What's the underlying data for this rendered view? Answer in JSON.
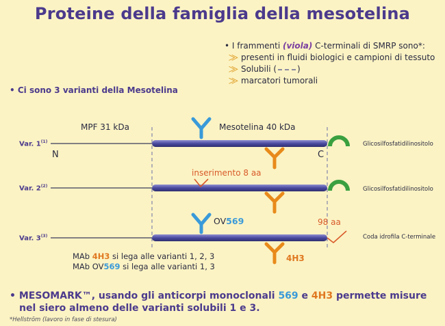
{
  "title": "Proteine della famiglia della mesotelina",
  "info": {
    "heading_pre": "I frammenti ",
    "heading_viola": "(viola)",
    "heading_post": " C-terminali di SMRP sono*:",
    "item1": "presenti in fluidi biologici e campioni di tessuto",
    "item2_pre": "Solubili (",
    "item2_post": ")",
    "item3": "marcatori tumorali"
  },
  "variants_heading": "• Ci sono 3 varianti della Mesotelina",
  "labels": {
    "mpf": "MPF 31 kDa",
    "mesotelina": "Mesotelina 40 kDa",
    "n": "N",
    "c": "C",
    "gpi1": "Glicosilfosfatidilinositolo",
    "gpi2": "Glicosilfosfatidilinositolo",
    "insert": "inserimento 8 aa",
    "ov_pre": "OV",
    "ov_num": "569",
    "aa98": "98 aa",
    "tail": "Coda idrofila C-terminale",
    "h43": "4H3"
  },
  "variants": [
    {
      "name": "Var. 1",
      "sup": "(1)"
    },
    {
      "name": "Var. 2",
      "sup": "(2)"
    },
    {
      "name": "Var. 3",
      "sup": "(3)"
    }
  ],
  "mab": {
    "line1_pre": "MAb ",
    "line1_ab": "4H3",
    "line1_post": " si lega alle varianti 1, 2, 3",
    "line2_pre": "MAb OV",
    "line2_ab": "569",
    "line2_post": " si lega alle varianti 1, 3"
  },
  "summary": {
    "p1": "• MESOMARK™, usando gli anticorpi monoclonali ",
    "n1": "569",
    "p2": " e ",
    "n2": "4H3",
    "p3": " permette misure",
    "line2": "nel siero almeno delle varianti solubili 1 e 3."
  },
  "footnote": "*Hellström (lavoro in fase di stesura)",
  "colors": {
    "title": "#4b3a8c",
    "bar": "#4a4aa0",
    "blue_antibody": "#3a9ad9",
    "orange_antibody": "#e88a1a",
    "green_anchor": "#3aa040",
    "red_insert": "#d95a2a",
    "background": "#fbf3c4"
  }
}
